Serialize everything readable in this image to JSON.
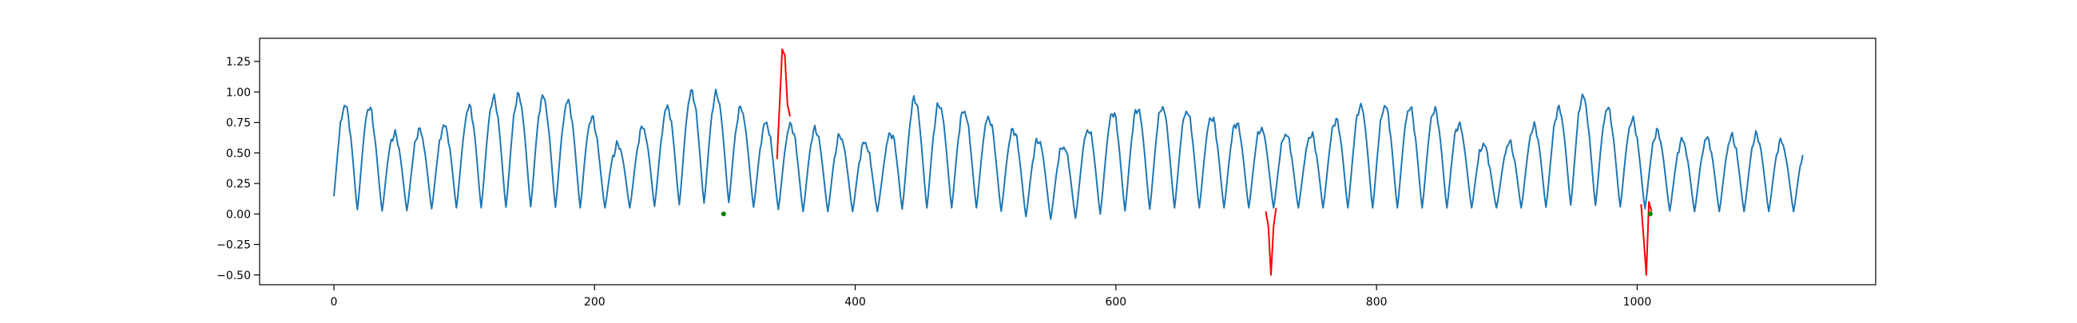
{
  "chart_data": {
    "type": "line",
    "title": "",
    "xlabel": "",
    "ylabel": "",
    "xlim": [
      -57,
      1183
    ],
    "ylim": [
      -0.58,
      1.44
    ],
    "xticks": [
      0,
      200,
      400,
      600,
      800,
      1000
    ],
    "yticks": [
      -0.5,
      -0.25,
      0.0,
      0.25,
      0.5,
      0.75,
      1.0,
      1.25
    ],
    "xtick_labels": [
      "0",
      "200",
      "400",
      "600",
      "800",
      "1000"
    ],
    "ytick_labels": [
      "−0.50",
      "−0.25",
      "0.00",
      "0.25",
      "0.50",
      "0.75",
      "1.00",
      "1.25"
    ],
    "grid": false,
    "legend": false,
    "series": [
      {
        "role": "signal",
        "color": "#1f77b4",
        "x_start": 0,
        "x_end": 1127,
        "n_points": 1128,
        "cycle_envelope": [
          {
            "x": 0,
            "period": 19,
            "min": 0.05,
            "max": 0.88
          },
          {
            "x": 25,
            "period": 19,
            "min": 0.03,
            "max": 0.9
          },
          {
            "x": 45,
            "period": 19,
            "min": 0.02,
            "max": 0.65
          },
          {
            "x": 85,
            "period": 19,
            "min": 0.05,
            "max": 0.72
          },
          {
            "x": 110,
            "period": 19,
            "min": 0.05,
            "max": 0.93
          },
          {
            "x": 150,
            "period": 19,
            "min": 0.06,
            "max": 0.98
          },
          {
            "x": 190,
            "period": 19,
            "min": 0.05,
            "max": 0.9
          },
          {
            "x": 215,
            "period": 19,
            "min": 0.05,
            "max": 0.55
          },
          {
            "x": 230,
            "period": 19,
            "min": 0.05,
            "max": 0.65
          },
          {
            "x": 270,
            "period": 19,
            "min": 0.08,
            "max": 1.0
          },
          {
            "x": 300,
            "period": 19,
            "min": 0.1,
            "max": 0.98
          },
          {
            "x": 325,
            "period": 19,
            "min": 0.05,
            "max": 0.75
          },
          {
            "x": 360,
            "period": 19,
            "min": 0.02,
            "max": 0.72
          },
          {
            "x": 395,
            "period": 19,
            "min": 0.02,
            "max": 0.62
          },
          {
            "x": 420,
            "period": 19,
            "min": 0.02,
            "max": 0.55
          },
          {
            "x": 445,
            "period": 19,
            "min": 0.05,
            "max": 0.95
          },
          {
            "x": 500,
            "period": 19,
            "min": 0.05,
            "max": 0.8
          },
          {
            "x": 535,
            "period": 19,
            "min": -0.03,
            "max": 0.62
          },
          {
            "x": 560,
            "period": 19,
            "min": -0.05,
            "max": 0.55
          },
          {
            "x": 600,
            "period": 19,
            "min": 0.02,
            "max": 0.85
          },
          {
            "x": 640,
            "period": 19,
            "min": 0.05,
            "max": 0.88
          },
          {
            "x": 690,
            "period": 19,
            "min": 0.05,
            "max": 0.75
          },
          {
            "x": 745,
            "period": 19,
            "min": 0.05,
            "max": 0.62
          },
          {
            "x": 790,
            "period": 19,
            "min": 0.05,
            "max": 0.9
          },
          {
            "x": 850,
            "period": 19,
            "min": 0.05,
            "max": 0.85
          },
          {
            "x": 890,
            "period": 19,
            "min": 0.05,
            "max": 0.5
          },
          {
            "x": 925,
            "period": 19,
            "min": 0.05,
            "max": 0.75
          },
          {
            "x": 955,
            "period": 19,
            "min": 0.08,
            "max": 0.98
          },
          {
            "x": 1000,
            "period": 19,
            "min": 0.05,
            "max": 0.75
          },
          {
            "x": 1030,
            "period": 19,
            "min": 0.02,
            "max": 0.6
          },
          {
            "x": 1090,
            "period": 19,
            "min": 0.02,
            "max": 0.65
          },
          {
            "x": 1127,
            "period": 19,
            "min": 0.02,
            "max": 0.55
          }
        ]
      },
      {
        "role": "anomaly",
        "color": "#ff0000",
        "x": [
          340,
          342,
          344,
          346,
          348,
          350
        ],
        "y": [
          0.45,
          0.9,
          1.35,
          1.3,
          0.9,
          0.8
        ]
      },
      {
        "role": "anomaly",
        "color": "#ff0000",
        "x": [
          715,
          717,
          719,
          721,
          723
        ],
        "y": [
          0.02,
          -0.1,
          -0.5,
          -0.1,
          0.05
        ]
      },
      {
        "role": "anomaly",
        "color": "#ff0000",
        "x": [
          1003,
          1005,
          1007,
          1009,
          1011
        ],
        "y": [
          0.08,
          -0.2,
          -0.5,
          0.1,
          0.02
        ]
      }
    ],
    "markers": [
      {
        "color": "#008000",
        "x": 299,
        "y": 0.0
      },
      {
        "color": "#008000",
        "x": 1010,
        "y": 0.0
      }
    ]
  }
}
